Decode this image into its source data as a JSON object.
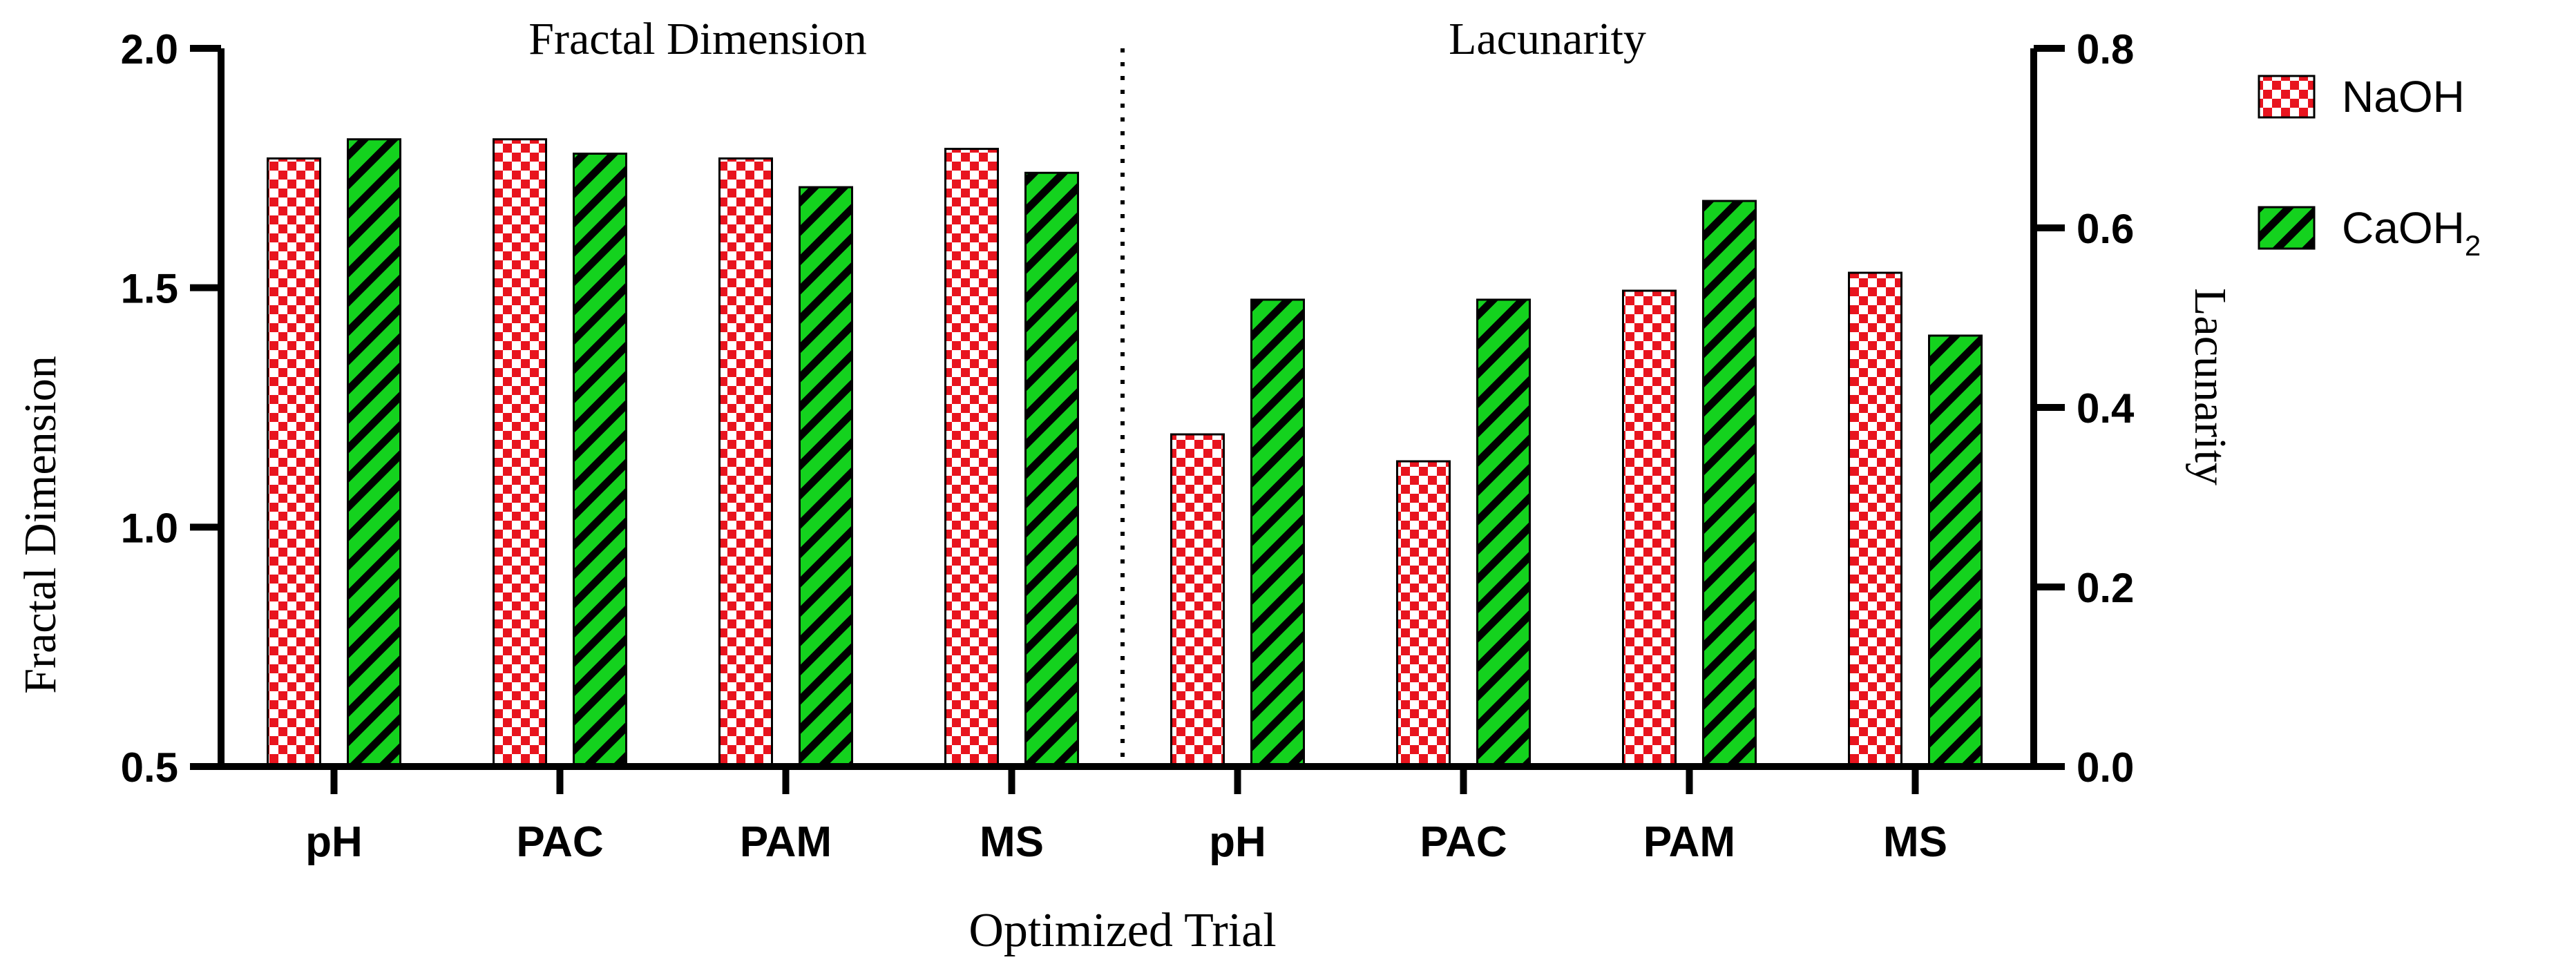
{
  "chart_data": {
    "type": "bar",
    "categories": [
      "pH",
      "PAC",
      "PAM",
      "MS",
      "pH",
      "PAC",
      "PAM",
      "MS"
    ],
    "xlabel": "Optimized Trial",
    "section_titles": [
      "Fractal Dimension",
      "Lacunarity"
    ],
    "legend_position": "top-right",
    "series_names": [
      "NaOH",
      "CaOH"
    ],
    "legend_subscript": "2",
    "left_axis": {
      "label": "Fractal Dimension",
      "ylim": [
        0.5,
        2.0
      ],
      "ticks": [
        "0.5",
        "1.0",
        "1.5",
        "2.0"
      ],
      "series": [
        {
          "name": "NaOH",
          "values": [
            1.77,
            1.81,
            1.77,
            1.79
          ]
        },
        {
          "name": "CaOH2",
          "values": [
            1.81,
            1.78,
            1.71,
            1.74
          ]
        }
      ]
    },
    "right_axis": {
      "label": "Lacunarity",
      "ylim": [
        0.0,
        0.8
      ],
      "ticks": [
        "0.0",
        "0.2",
        "0.4",
        "0.6",
        "0.8"
      ],
      "series": [
        {
          "name": "NaOH",
          "values": [
            0.37,
            0.34,
            0.53,
            0.55
          ]
        },
        {
          "name": "CaOH2",
          "values": [
            0.52,
            0.52,
            0.63,
            0.48
          ]
        }
      ]
    },
    "colors": {
      "naoh_check": "#e8141e",
      "caoh_fill": "#14d21e",
      "ink": "#000000"
    }
  }
}
